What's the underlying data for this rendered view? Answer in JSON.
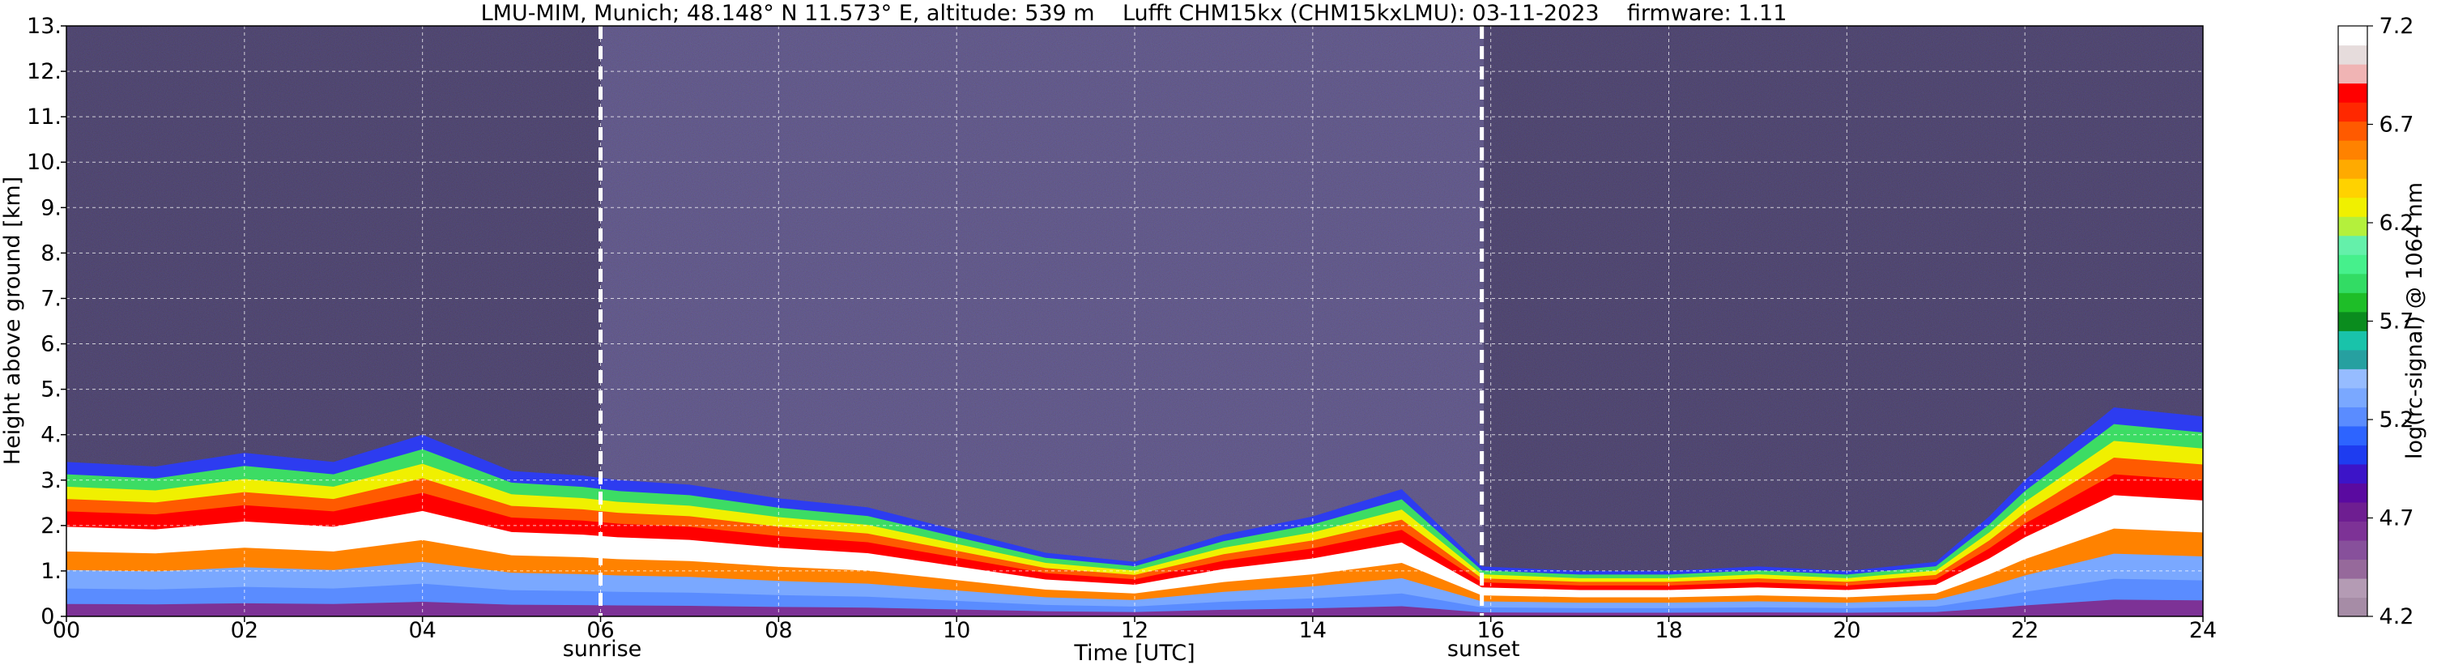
{
  "chart_data": {
    "type": "heatmap",
    "title": "LMU-MIM, Munich; 48.148° N 11.573° E, altitude: 539 m    Lufft CHM15kx (CHM15kxLMU): 03-11-2023    firmware: 1.11",
    "xlabel": "Time [UTC]",
    "ylabel": "Height above ground [km]",
    "xlim": [
      0,
      24
    ],
    "ylim": [
      0,
      13
    ],
    "x_ticks": [
      "00",
      "02",
      "04",
      "06",
      "08",
      "10",
      "12",
      "14",
      "16",
      "18",
      "20",
      "22",
      "24"
    ],
    "x_tick_values": [
      0,
      2,
      4,
      6,
      8,
      10,
      12,
      14,
      16,
      18,
      20,
      22,
      24
    ],
    "y_ticks": [
      "0.",
      "1.",
      "2.",
      "3.",
      "4.",
      "5.",
      "6.",
      "7.",
      "8.",
      "9.",
      "10.",
      "11.",
      "12.",
      "13."
    ],
    "y_tick_values": [
      0,
      1,
      2,
      3,
      4,
      5,
      6,
      7,
      8,
      9,
      10,
      11,
      12,
      13
    ],
    "grid": true,
    "markers": [
      {
        "label": "sunrise",
        "x": 6.0
      },
      {
        "label": "sunset",
        "x": 15.9
      }
    ],
    "colorbar": {
      "label": "log(rc-signal) @ 1064 nm",
      "range": [
        4.2,
        7.2
      ],
      "ticks": [
        "7.2",
        "6.7",
        "6.2",
        "5.7",
        "5.2",
        "4.7",
        "4.2"
      ],
      "tick_values": [
        7.2,
        6.7,
        6.2,
        5.7,
        5.2,
        4.7,
        4.2
      ],
      "colors": [
        "#a68ca6",
        "#b49bb4",
        "#96699b",
        "#87509b",
        "#7d3296",
        "#6e1e91",
        "#5a0aa0",
        "#3c14c8",
        "#1e3cf0",
        "#2d64ff",
        "#5a8cff",
        "#7aa8ff",
        "#96bcff",
        "#26a0a0",
        "#19c3aa",
        "#0a8c1e",
        "#1ebe28",
        "#32dc64",
        "#46f08c",
        "#64f0aa",
        "#b4f03c",
        "#f0f000",
        "#ffd200",
        "#ffaa00",
        "#ff8200",
        "#ff5a00",
        "#ff2800",
        "#ff0000",
        "#f0b4b4",
        "#e6dcdc",
        "#ffffff"
      ]
    },
    "profile": {
      "description_note": "",
      "times": [
        0,
        1,
        2,
        3,
        4,
        5,
        5.8,
        6.2,
        7,
        8,
        9,
        10,
        11,
        12,
        13,
        14,
        15,
        15.9,
        17,
        18,
        19,
        20,
        21,
        21.6,
        22,
        23,
        24
      ],
      "layer_top_km": [
        3.4,
        3.3,
        3.6,
        3.4,
        4.0,
        3.2,
        3.1,
        3.0,
        2.9,
        2.6,
        2.4,
        1.9,
        1.4,
        1.2,
        1.8,
        2.2,
        2.8,
        1.1,
        1.0,
        1.0,
        1.1,
        1.0,
        1.2,
        2.2,
        3.0,
        4.6,
        4.4
      ]
    }
  }
}
